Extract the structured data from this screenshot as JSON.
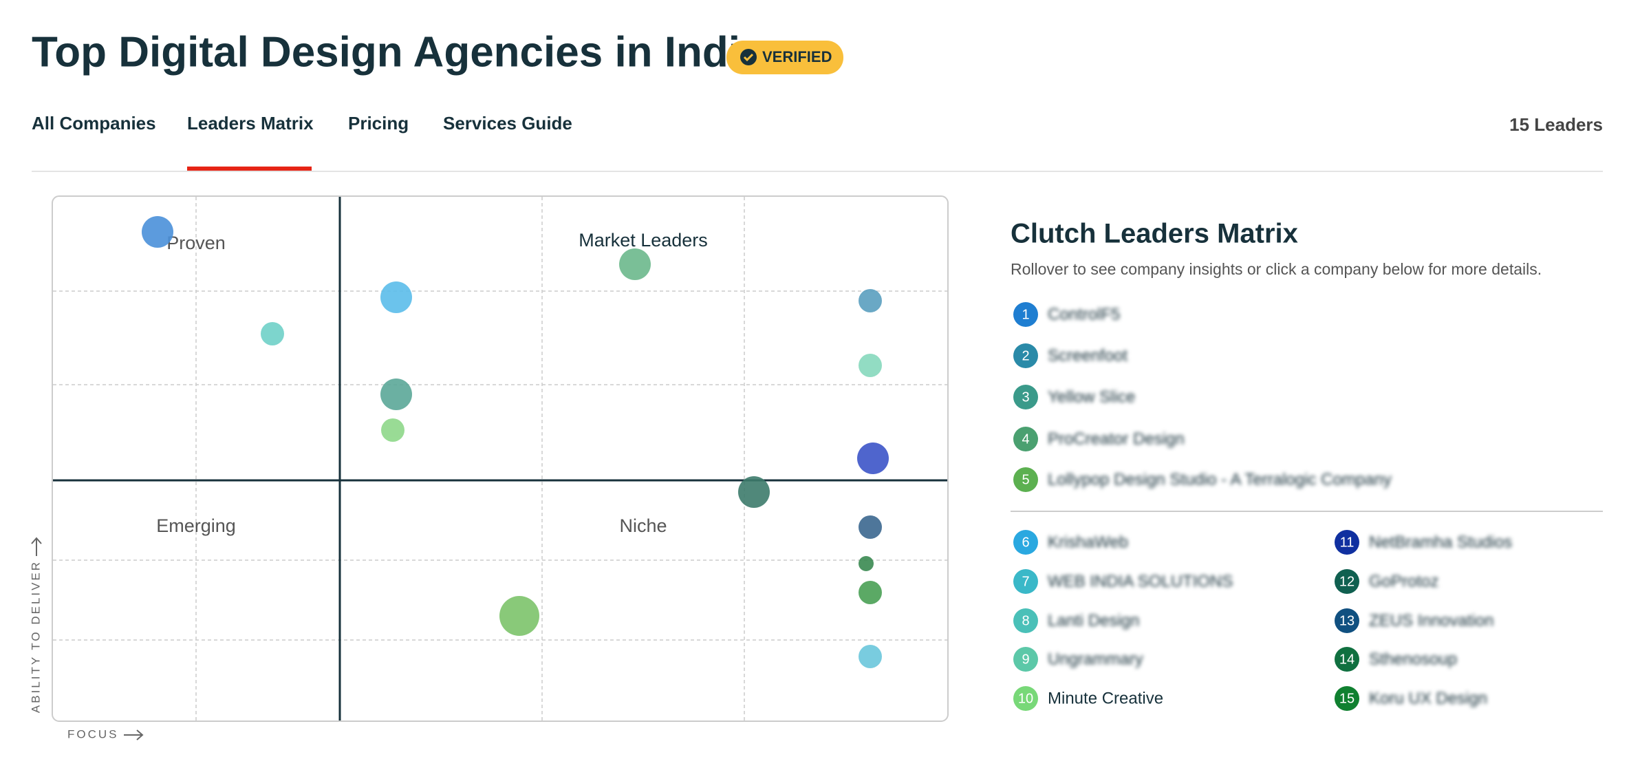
{
  "header": {
    "title": "Top Digital Design Agencies in India",
    "badge": "VERIFIED"
  },
  "tabs": [
    "All Companies",
    "Leaders Matrix",
    "Pricing",
    "Services Guide"
  ],
  "leader_count": "15 Leaders",
  "matrix": {
    "quadrants": [
      "Proven",
      "Market Leaders",
      "Emerging",
      "Niche"
    ],
    "y_axis": "ABILITY TO DELIVER",
    "x_axis": "FOCUS"
  },
  "panel": {
    "title": "Clutch Leaders Matrix",
    "subtitle": "Rollover to see company insights or click a company below for more details.",
    "companies": [
      {
        "num": "1",
        "name": "ControlF5"
      },
      {
        "num": "2",
        "name": "Screenfoot"
      },
      {
        "num": "3",
        "name": "Yellow Slice"
      },
      {
        "num": "4",
        "name": "ProCreator Design"
      },
      {
        "num": "5",
        "name": "Lollypop Design Studio - A Terralogic Company"
      },
      {
        "num": "6",
        "name": "KrishaWeb"
      },
      {
        "num": "7",
        "name": "WEB INDIA SOLUTIONS"
      },
      {
        "num": "8",
        "name": "Lanti Design"
      },
      {
        "num": "9",
        "name": "Ungrammary"
      },
      {
        "num": "10",
        "name": "Minute Creative"
      },
      {
        "num": "11",
        "name": "NetBramha Studios"
      },
      {
        "num": "12",
        "name": "GoProtoz"
      },
      {
        "num": "13",
        "name": "ZEUS Innovation"
      },
      {
        "num": "14",
        "name": "Sthenosoup"
      },
      {
        "num": "15",
        "name": "Koru UX Design"
      }
    ]
  }
}
